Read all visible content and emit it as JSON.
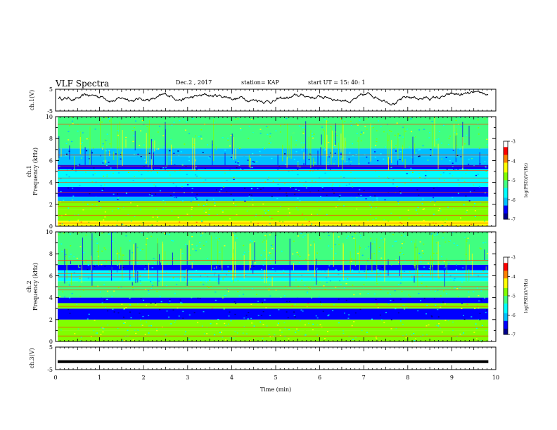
{
  "header": {
    "title": "VLF Spectra",
    "date": "Dec.2 , 2017",
    "station": "station= KAP",
    "start": "start UT =   15: 40: 1"
  },
  "chart_data": [
    {
      "type": "line",
      "ylabel": "ch.1(V)",
      "ylim": [
        -5,
        5
      ],
      "yticks": [
        "5",
        "-5"
      ],
      "note": "noisy waveform fluctuating roughly between -2 and +4 V"
    },
    {
      "type": "heatmap",
      "ylabel": "ch.1\nFrequency (kHz)",
      "ylim": [
        0,
        10
      ],
      "yticks": [
        "0",
        "2",
        "4",
        "6",
        "8",
        "10"
      ],
      "colorbar": {
        "label": "log(PSD)(V²/Hz)",
        "range": [
          -7,
          -3
        ],
        "ticks": [
          "-3",
          "-4",
          "-5",
          "-6",
          "-7"
        ]
      },
      "bands": [
        {
          "from": 0.0,
          "to": 0.5,
          "level": -4.5
        },
        {
          "from": 0.5,
          "to": 1.5,
          "level": -4.9
        },
        {
          "from": 1.5,
          "to": 2.3,
          "level": -5.0
        },
        {
          "from": 2.3,
          "to": 2.7,
          "level": -6.1
        },
        {
          "from": 2.7,
          "to": 3.6,
          "level": -6.6
        },
        {
          "from": 3.6,
          "to": 5.2,
          "level": -5.6
        },
        {
          "from": 5.2,
          "to": 5.6,
          "level": -6.5
        },
        {
          "from": 5.6,
          "to": 6.4,
          "level": -6.0
        },
        {
          "from": 6.4,
          "to": 7.1,
          "level": -6.3
        },
        {
          "from": 7.1,
          "to": 10.0,
          "level": -5.2
        }
      ],
      "lines_khz": [
        0.3,
        1.0,
        1.8,
        2.2,
        3.1,
        4.0,
        4.4,
        5.1,
        5.5,
        6.5,
        9.3
      ]
    },
    {
      "type": "heatmap",
      "ylabel": "ch.2\nFrequency (kHz)",
      "ylim": [
        0,
        10
      ],
      "yticks": [
        "0",
        "2",
        "4",
        "6",
        "8",
        "10"
      ],
      "colorbar": {
        "label": "log(PSD)(V²/Hz)",
        "range": [
          -7,
          -3
        ],
        "ticks": [
          "-3",
          "-4",
          "-5",
          "-6",
          "-7"
        ]
      },
      "bands": [
        {
          "from": 0.0,
          "to": 1.0,
          "level": -4.9
        },
        {
          "from": 1.0,
          "to": 2.0,
          "level": -5.0
        },
        {
          "from": 2.0,
          "to": 3.0,
          "level": -6.6
        },
        {
          "from": 3.0,
          "to": 3.5,
          "level": -4.8
        },
        {
          "from": 3.5,
          "to": 4.0,
          "level": -6.6
        },
        {
          "from": 4.0,
          "to": 5.5,
          "level": -5.2
        },
        {
          "from": 5.5,
          "to": 6.5,
          "level": -5.6
        },
        {
          "from": 6.5,
          "to": 7.0,
          "level": -6.5
        },
        {
          "from": 7.0,
          "to": 10.0,
          "level": -5.2
        }
      ],
      "lines_khz": [
        0.5,
        1.3,
        3.2,
        4.7,
        5.0,
        5.9,
        6.2,
        7.4
      ]
    },
    {
      "type": "line",
      "ylabel": "ch.3(V)",
      "ylim": [
        -5,
        5
      ],
      "yticks": [
        "5",
        "-5"
      ],
      "y_value": -1.5,
      "note": "flat thick line"
    }
  ],
  "xaxis": {
    "label": "Time (min)",
    "xlim": [
      0,
      10
    ],
    "ticks": [
      "0",
      "1",
      "2",
      "3",
      "4",
      "5",
      "6",
      "7",
      "8",
      "9",
      "10"
    ],
    "data_end": 9.83
  },
  "colors": {
    "cmap": [
      "#00008b",
      "#0000ff",
      "#00bfff",
      "#00ffff",
      "#40ff80",
      "#80ff00",
      "#ffff00",
      "#ff8000",
      "#ff0000",
      "#ffffff"
    ]
  }
}
